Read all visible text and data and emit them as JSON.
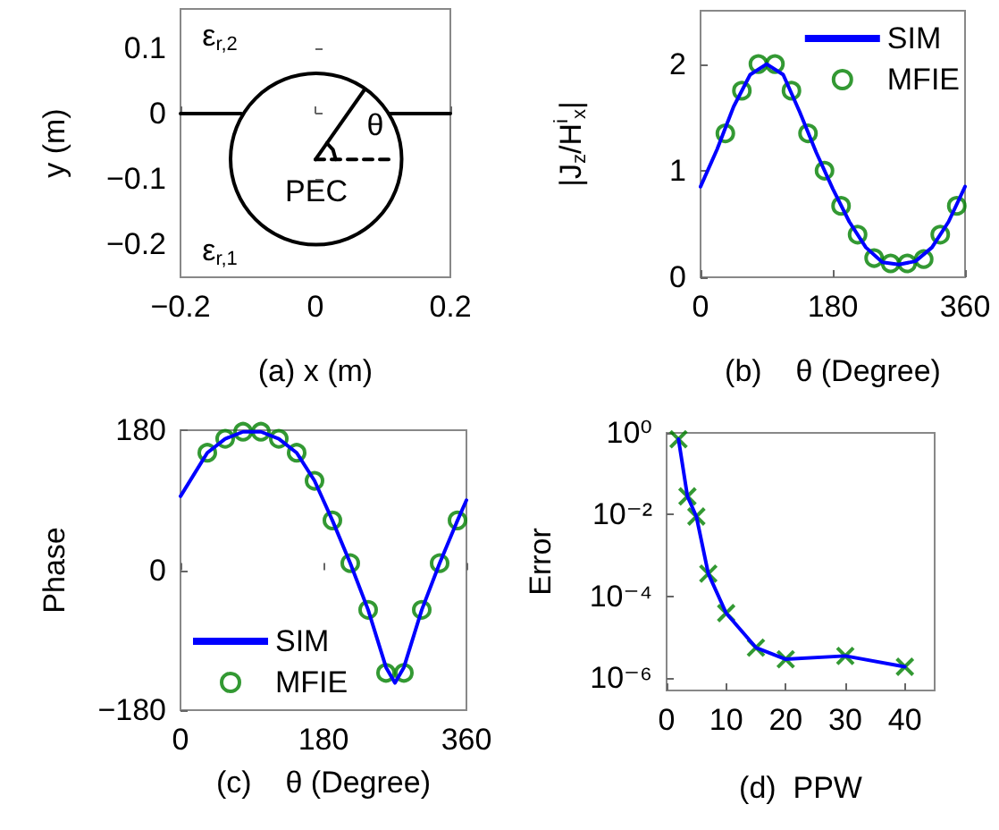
{
  "chart_data": [
    {
      "type": "line",
      "xlabel": "(a) x (m)",
      "ylabel": "y (m)",
      "xlim": [
        -0.2,
        0.2
      ],
      "ylim": [
        -0.25,
        0.16
      ],
      "xticks": [
        {
          "value": -0.2,
          "label": "−0.2"
        },
        0,
        0.2
      ],
      "yticks": [
        {
          "value": -0.2,
          "label": "−0.2"
        },
        {
          "value": -0.1,
          "label": "−0.1"
        },
        0,
        0.1
      ],
      "marker": "none",
      "series": [
        {
          "color": "#000000",
          "x": [
            -0.2,
            -0.11,
            0,
            0.11,
            0.2
          ],
          "values": [
            0,
            0,
            null,
            0,
            0
          ]
        },
        {
          "color": "#000000",
          "x": [
            0,
            0.073
          ],
          "values": [
            -0.07,
            0.037
          ]
        },
        {
          "color": "#000000",
          "line_style": "dashed",
          "x": [
            0,
            0.11
          ],
          "values": [
            -0.07,
            -0.07
          ]
        },
        {
          "color": "#000000",
          "x": [
            0.017,
            0.026,
            0.03
          ],
          "values": [
            -0.045,
            -0.055,
            -0.07
          ]
        }
      ],
      "annotations": [
        "ε$_{r,2}$",
        "ε$_{r,1}$",
        "PEC",
        "θ"
      ]
    },
    {
      "type": "line",
      "xlabel": "(b)    θ (Degree)",
      "ylabel": "|J$_{z}$/H$^{i}$$_{x}$|",
      "xlim": [
        0,
        360
      ],
      "ylim": [
        0,
        2.5
      ],
      "xticks": [
        0,
        180,
        360
      ],
      "yticks": [
        0,
        1,
        2
      ],
      "legend": "top right",
      "series": [
        {
          "name": "SIM",
          "marker": "none",
          "color": "#0000ff",
          "x": [
            0,
            22.5,
            45,
            67.5,
            90,
            112.5,
            135,
            157.5,
            180,
            202.5,
            225,
            247.5,
            270,
            292.5,
            315,
            337.5,
            360
          ],
          "values": [
            0.85,
            1.2,
            1.6,
            1.9,
            2.0,
            1.9,
            1.55,
            1.17,
            0.83,
            0.52,
            0.28,
            0.14,
            0.12,
            0.15,
            0.28,
            0.52,
            0.85
          ]
        },
        {
          "name": "MFIE",
          "type": "scatter",
          "marker": "circle",
          "color": "#008000",
          "x": [
            33.75,
            56.25,
            78.75,
            101.25,
            123.75,
            146.25,
            168.75,
            191.25,
            213.75,
            236.25,
            258.75,
            281.25,
            303.75,
            326.25,
            348.75
          ],
          "values": [
            1.35,
            1.75,
            2.0,
            2.0,
            1.75,
            1.35,
            1.0,
            0.67,
            0.4,
            0.18,
            0.13,
            0.13,
            0.17,
            0.4,
            0.67
          ]
        }
      ]
    },
    {
      "type": "line",
      "xlabel": "(c)    θ (Degree)",
      "ylabel": "Phase",
      "xlim": [
        0,
        360
      ],
      "ylim": [
        -180,
        180
      ],
      "xticks": [
        0,
        180,
        360
      ],
      "yticks": [
        {
          "value": -180,
          "label": "−180"
        },
        0,
        180
      ],
      "legend": "bottom left",
      "series": [
        {
          "name": "SIM",
          "marker": "none",
          "color": "#0000ff",
          "x": [
            0,
            33.75,
            56.25,
            78.75,
            101.25,
            123.75,
            146.25,
            168.75,
            191.25,
            213.75,
            236.25,
            258.75,
            270,
            281.25,
            303.75,
            326.25,
            348.75,
            360
          ],
          "values": [
            95,
            151,
            169,
            178,
            178,
            169,
            151,
            115,
            64,
            9,
            -51,
            -125,
            -145,
            -125,
            -51,
            9,
            64,
            90
          ]
        },
        {
          "name": "MFIE",
          "type": "scatter",
          "marker": "circle",
          "color": "#008000",
          "x": [
            33.75,
            56.25,
            78.75,
            101.25,
            123.75,
            146.25,
            168.75,
            191.25,
            213.75,
            236.25,
            258.75,
            281.25,
            303.75,
            326.25,
            348.75
          ],
          "values": [
            151,
            169,
            178,
            178,
            169,
            151,
            115,
            64,
            9,
            -51,
            -132,
            -132,
            -51,
            9,
            64
          ]
        }
      ]
    },
    {
      "type": "line",
      "xlabel": "(d)  PPW",
      "ylabel": "Error",
      "log": "y",
      "xlim": [
        0,
        45
      ],
      "ylim": [
        5e-07,
        1
      ],
      "xticks": [
        0,
        10,
        20,
        30,
        40
      ],
      "yticks": [
        {
          "value": 1,
          "label": "10⁰"
        },
        {
          "value": 0.01,
          "label": "10⁻²"
        },
        {
          "value": 0.0001,
          "label": "10⁻⁴"
        },
        {
          "value": 1e-06,
          "label": "10⁻⁶"
        }
      ],
      "series": [
        {
          "marker": "none",
          "color": "#0000ff",
          "x": [
            2,
            3.5,
            5,
            7,
            10,
            15,
            20,
            30,
            40
          ],
          "values": [
            0.7,
            0.028,
            0.009,
            0.00036,
            3.9e-05,
            5.6e-06,
            2.9e-06,
            3.5e-06,
            1.9e-06
          ]
        },
        {
          "type": "scatter",
          "marker": "cross",
          "color": "#008000",
          "x": [
            2,
            3.5,
            5,
            7,
            10,
            15,
            20,
            30,
            40
          ],
          "values": [
            0.7,
            0.028,
            0.009,
            0.00036,
            3.9e-05,
            5.6e-06,
            2.9e-06,
            3.5e-06,
            1.9e-06
          ]
        }
      ]
    }
  ]
}
